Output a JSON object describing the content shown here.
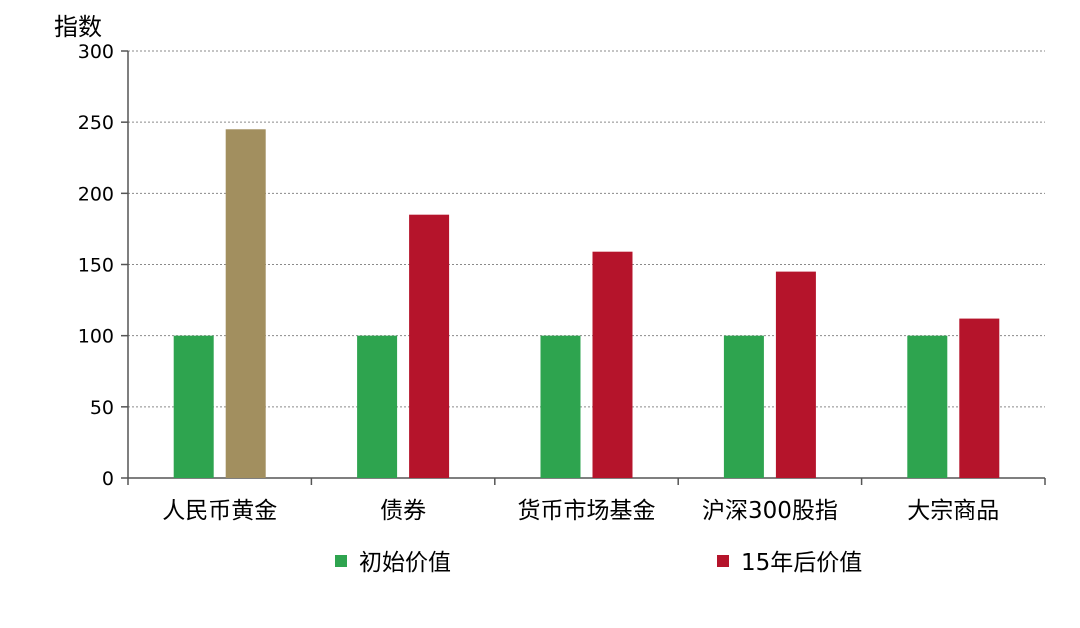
{
  "chart_data": {
    "type": "bar",
    "ylabel": "指数",
    "categories": [
      "人民币黄金",
      "债券",
      "货币市场基金",
      "沪深300股指",
      "大宗商品"
    ],
    "ylim": [
      0,
      300
    ],
    "yticks": [
      0,
      50,
      100,
      150,
      200,
      250,
      300
    ],
    "grid": true,
    "legend_position": "bottom",
    "series": [
      {
        "name": "初始价值",
        "color": "#2ea44f",
        "values": [
          100,
          100,
          100,
          100,
          100
        ]
      },
      {
        "name": "15年后价值",
        "color": "#b5142b",
        "values": [
          245,
          185,
          159,
          145,
          112
        ]
      }
    ],
    "highlight": {
      "category_index": 0,
      "series_index": 1,
      "color": "#a28f5f"
    }
  }
}
